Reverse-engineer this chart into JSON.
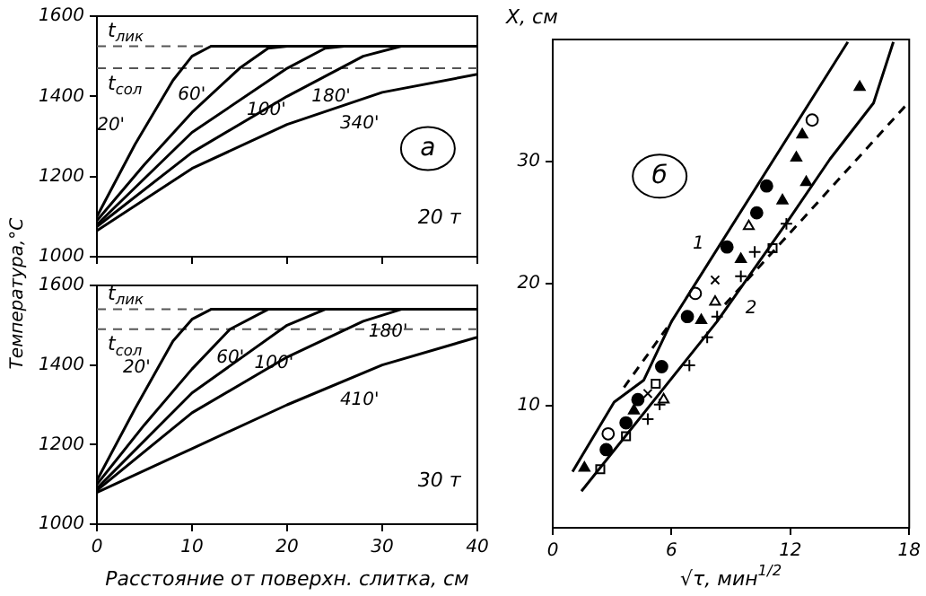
{
  "chart_data": [
    {
      "type": "line",
      "ylabel": "Температура,°С",
      "xlim": [
        0,
        40
      ],
      "xticks": [
        0,
        10,
        20,
        30,
        40
      ],
      "ylim": [
        1000,
        1600
      ],
      "yticks": [
        1000,
        1200,
        1400,
        1600
      ],
      "tick_labels": "y",
      "grid": false,
      "legend": false,
      "ref_lines": [
        {
          "axis": "y",
          "value": 1525,
          "label": "t$_{лик}$",
          "line_style": "dashed",
          "color": "#555555"
        },
        {
          "axis": "y",
          "value": 1470,
          "label": "t$_{сол}$",
          "line_style": "dashed",
          "color": "#555555"
        }
      ],
      "annotations": [
        "а",
        "20 т"
      ],
      "series": [
        {
          "name": "20'",
          "color": "#000000",
          "x": [
            0,
            4,
            8,
            10,
            12,
            40
          ],
          "values": [
            1100,
            1280,
            1440,
            1500,
            1525,
            1525
          ]
        },
        {
          "name": "60'",
          "color": "#000000",
          "x": [
            0,
            5,
            10,
            15,
            18,
            20,
            40
          ],
          "values": [
            1090,
            1230,
            1360,
            1470,
            1520,
            1525,
            1525
          ]
        },
        {
          "name": "100'",
          "color": "#000000",
          "x": [
            0,
            10,
            20,
            24,
            26,
            40
          ],
          "values": [
            1080,
            1310,
            1470,
            1520,
            1525,
            1525
          ]
        },
        {
          "name": "180'",
          "color": "#000000",
          "x": [
            0,
            10,
            20,
            28,
            32,
            40
          ],
          "values": [
            1075,
            1260,
            1400,
            1500,
            1525,
            1525
          ]
        },
        {
          "name": "340'",
          "color": "#000000",
          "x": [
            0,
            10,
            20,
            30,
            40
          ],
          "values": [
            1065,
            1220,
            1330,
            1410,
            1455
          ]
        }
      ]
    },
    {
      "type": "line",
      "xlabel": "Расстояние от поверхн. слитка, см",
      "xlim": [
        0,
        40
      ],
      "xticks": [
        0,
        10,
        20,
        30,
        40
      ],
      "ylim": [
        1000,
        1600
      ],
      "yticks": [
        1000,
        1200,
        1400,
        1600
      ],
      "grid": false,
      "legend": false,
      "ref_lines": [
        {
          "axis": "y",
          "value": 1540,
          "label": "t$_{лик}$",
          "line_style": "dashed",
          "color": "#555555"
        },
        {
          "axis": "y",
          "value": 1490,
          "label": "t$_{сол}$",
          "line_style": "dashed",
          "color": "#555555"
        }
      ],
      "annotations": [
        "30 т"
      ],
      "series": [
        {
          "name": "20'",
          "color": "#000000",
          "x": [
            0,
            4,
            8,
            10,
            12,
            40
          ],
          "values": [
            1110,
            1290,
            1460,
            1515,
            1540,
            1540
          ]
        },
        {
          "name": "60'",
          "color": "#000000",
          "x": [
            0,
            5,
            10,
            14,
            18,
            40
          ],
          "values": [
            1100,
            1250,
            1390,
            1490,
            1540,
            1540
          ]
        },
        {
          "name": "100'",
          "color": "#000000",
          "x": [
            0,
            10,
            20,
            24,
            40
          ],
          "values": [
            1090,
            1330,
            1500,
            1540,
            1540
          ]
        },
        {
          "name": "180'",
          "color": "#000000",
          "x": [
            0,
            10,
            20,
            28,
            32,
            40
          ],
          "values": [
            1085,
            1280,
            1420,
            1510,
            1540,
            1540
          ]
        },
        {
          "name": "410'",
          "color": "#000000",
          "x": [
            0,
            10,
            20,
            30,
            40
          ],
          "values": [
            1080,
            1190,
            1300,
            1400,
            1470
          ]
        }
      ]
    },
    {
      "type": "scatter",
      "xlabel": "√τ, мин$^{1/2}$",
      "ylabel": "X, см",
      "xlim": [
        0,
        18
      ],
      "xticks": [
        0,
        6,
        12,
        18
      ],
      "ylim": [
        0,
        40
      ],
      "yticks": [
        10,
        20,
        30
      ],
      "grid": false,
      "legend": false,
      "annotations": [
        "б"
      ],
      "series": [
        {
          "name": "1",
          "type": "line",
          "marker": "none",
          "color": "#000000",
          "x": [
            1.0,
            3.1,
            4.6,
            6.0,
            14.9
          ],
          "values": [
            4.6,
            10.3,
            12.1,
            16.9,
            39.8
          ]
        },
        {
          "name": "2",
          "type": "line",
          "marker": "none",
          "color": "#000000",
          "x": [
            1.45,
            8.3,
            11.9,
            14.0,
            16.2,
            17.2
          ],
          "values": [
            3.0,
            16.9,
            25.2,
            30.2,
            34.8,
            39.8
          ]
        },
        {
          "type": "line",
          "marker": "none",
          "line_style": "dashed",
          "color": "#000000",
          "x": [
            3.6,
            6.0
          ],
          "values": [
            11.5,
            16.9
          ]
        },
        {
          "type": "line",
          "marker": "none",
          "line_style": "dashed",
          "color": "#000000",
          "x": [
            8.7,
            18.0
          ],
          "values": [
            18.3,
            34.9
          ]
        },
        {
          "marker": "circle",
          "color": "#000000",
          "x": [
            2.7,
            3.7,
            4.3,
            5.5,
            6.8,
            8.8,
            10.3,
            10.8
          ],
          "values": [
            6.4,
            8.6,
            10.5,
            13.2,
            17.3,
            23.0,
            25.8,
            28.0
          ]
        },
        {
          "marker": "circle-open",
          "color": "#000000",
          "x": [
            2.8,
            7.2,
            13.1
          ],
          "values": [
            7.7,
            19.2,
            33.4
          ]
        },
        {
          "marker": "triangle",
          "color": "#000000",
          "x": [
            1.6,
            4.1,
            7.5,
            9.5,
            11.6,
            12.8,
            12.3,
            12.6,
            15.5
          ],
          "values": [
            4.9,
            9.6,
            17.0,
            22.0,
            26.8,
            28.3,
            30.3,
            32.2,
            36.1
          ]
        },
        {
          "marker": "triangle-open",
          "color": "#000000",
          "x": [
            5.6,
            8.2,
            9.9
          ],
          "values": [
            10.5,
            18.5,
            24.7
          ]
        },
        {
          "marker": "cross",
          "color": "#000000",
          "x": [
            4.8,
            8.2
          ],
          "values": [
            11.0,
            20.3
          ]
        },
        {
          "marker": "plus",
          "color": "#000000",
          "x": [
            4.8,
            5.4,
            6.9,
            7.8,
            8.3,
            9.5,
            10.2,
            11.8
          ],
          "values": [
            8.9,
            10.1,
            13.3,
            15.6,
            17.3,
            20.6,
            22.6,
            24.9
          ]
        },
        {
          "marker": "square-open",
          "color": "#000000",
          "x": [
            2.4,
            3.7,
            5.2,
            11.1
          ],
          "values": [
            4.8,
            7.5,
            11.8,
            22.9
          ]
        }
      ]
    }
  ]
}
